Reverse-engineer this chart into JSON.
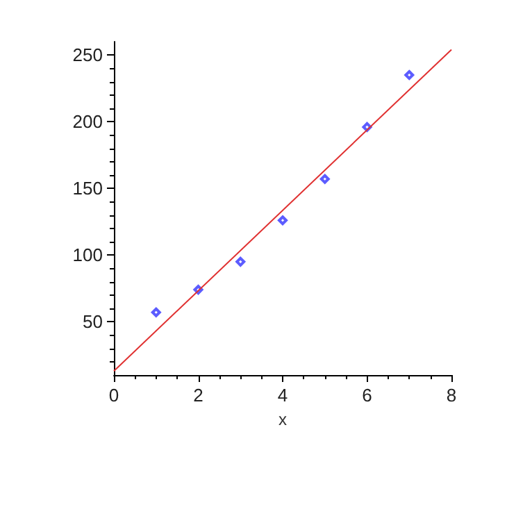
{
  "chart_data": {
    "type": "scatter",
    "xlabel": "x",
    "xlim": [
      0,
      8
    ],
    "xticks": [
      0,
      2,
      4,
      6,
      8
    ],
    "ylim": [
      10,
      260
    ],
    "yticks": [
      50,
      100,
      150,
      200,
      250
    ],
    "grid": false,
    "marker": "diamond",
    "series": [
      {
        "color": "#3333ff",
        "x": [
          1,
          2,
          3,
          4,
          5,
          6,
          7
        ],
        "values": [
          57,
          74,
          95,
          126,
          157,
          196,
          235
        ]
      },
      {
        "type": "line",
        "color": "#e03030",
        "x": [
          0,
          8
        ],
        "values": [
          13,
          254
        ],
        "marker": "none"
      }
    ]
  }
}
